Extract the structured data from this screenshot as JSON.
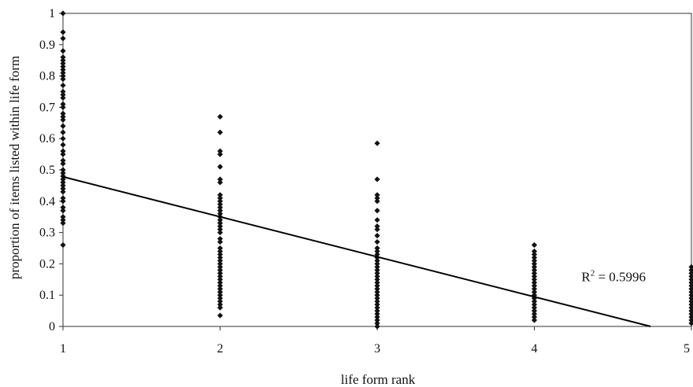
{
  "chart_data": {
    "type": "scatter",
    "title": "",
    "xlabel": "life form rank",
    "ylabel": "proportion of items listed within life form",
    "xlim": [
      1,
      5
    ],
    "ylim": [
      0,
      1
    ],
    "x_ticks": [
      "1",
      "2",
      "3",
      "4",
      "5"
    ],
    "y_ticks": [
      "0",
      "0.1",
      "0.2",
      "0.3",
      "0.4",
      "0.5",
      "0.6",
      "0.7",
      "0.8",
      "0.9",
      "1"
    ],
    "grid": false,
    "legend": "none",
    "marker_color": "#111111",
    "series": [
      {
        "points": [
          [
            1,
            1.0
          ],
          [
            1,
            0.94
          ],
          [
            1,
            0.92
          ],
          [
            1,
            0.88
          ],
          [
            1,
            0.86
          ],
          [
            1,
            0.85
          ],
          [
            1,
            0.84
          ],
          [
            1,
            0.83
          ],
          [
            1,
            0.82
          ],
          [
            1,
            0.81
          ],
          [
            1,
            0.8
          ],
          [
            1,
            0.79
          ],
          [
            1,
            0.77
          ],
          [
            1,
            0.75
          ],
          [
            1,
            0.74
          ],
          [
            1,
            0.73
          ],
          [
            1,
            0.71
          ],
          [
            1,
            0.7
          ],
          [
            1,
            0.68
          ],
          [
            1,
            0.67
          ],
          [
            1,
            0.66
          ],
          [
            1,
            0.64
          ],
          [
            1,
            0.62
          ],
          [
            1,
            0.6
          ],
          [
            1,
            0.58
          ],
          [
            1,
            0.56
          ],
          [
            1,
            0.55
          ],
          [
            1,
            0.53
          ],
          [
            1,
            0.52
          ],
          [
            1,
            0.5
          ],
          [
            1,
            0.49
          ],
          [
            1,
            0.48
          ],
          [
            1,
            0.47
          ],
          [
            1,
            0.46
          ],
          [
            1,
            0.45
          ],
          [
            1,
            0.44
          ],
          [
            1,
            0.43
          ],
          [
            1,
            0.41
          ],
          [
            1,
            0.4
          ],
          [
            1,
            0.38
          ],
          [
            1,
            0.37
          ],
          [
            1,
            0.35
          ],
          [
            1,
            0.34
          ],
          [
            1,
            0.33
          ],
          [
            1,
            0.26
          ],
          [
            2,
            0.67
          ],
          [
            2,
            0.62
          ],
          [
            2,
            0.56
          ],
          [
            2,
            0.55
          ],
          [
            2,
            0.51
          ],
          [
            2,
            0.47
          ],
          [
            2,
            0.46
          ],
          [
            2,
            0.42
          ],
          [
            2,
            0.41
          ],
          [
            2,
            0.4
          ],
          [
            2,
            0.39
          ],
          [
            2,
            0.38
          ],
          [
            2,
            0.37
          ],
          [
            2,
            0.36
          ],
          [
            2,
            0.35
          ],
          [
            2,
            0.34
          ],
          [
            2,
            0.33
          ],
          [
            2,
            0.32
          ],
          [
            2,
            0.31
          ],
          [
            2,
            0.3
          ],
          [
            2,
            0.28
          ],
          [
            2,
            0.27
          ],
          [
            2,
            0.25
          ],
          [
            2,
            0.24
          ],
          [
            2,
            0.23
          ],
          [
            2,
            0.22
          ],
          [
            2,
            0.21
          ],
          [
            2,
            0.2
          ],
          [
            2,
            0.19
          ],
          [
            2,
            0.18
          ],
          [
            2,
            0.17
          ],
          [
            2,
            0.16
          ],
          [
            2,
            0.15
          ],
          [
            2,
            0.14
          ],
          [
            2,
            0.13
          ],
          [
            2,
            0.12
          ],
          [
            2,
            0.11
          ],
          [
            2,
            0.1
          ],
          [
            2,
            0.09
          ],
          [
            2,
            0.08
          ],
          [
            2,
            0.07
          ],
          [
            2,
            0.06
          ],
          [
            2,
            0.035
          ],
          [
            3,
            0.585
          ],
          [
            3,
            0.47
          ],
          [
            3,
            0.42
          ],
          [
            3,
            0.41
          ],
          [
            3,
            0.4
          ],
          [
            3,
            0.37
          ],
          [
            3,
            0.34
          ],
          [
            3,
            0.32
          ],
          [
            3,
            0.31
          ],
          [
            3,
            0.29
          ],
          [
            3,
            0.27
          ],
          [
            3,
            0.25
          ],
          [
            3,
            0.24
          ],
          [
            3,
            0.23
          ],
          [
            3,
            0.22
          ],
          [
            3,
            0.21
          ],
          [
            3,
            0.2
          ],
          [
            3,
            0.19
          ],
          [
            3,
            0.18
          ],
          [
            3,
            0.17
          ],
          [
            3,
            0.16
          ],
          [
            3,
            0.15
          ],
          [
            3,
            0.14
          ],
          [
            3,
            0.13
          ],
          [
            3,
            0.12
          ],
          [
            3,
            0.11
          ],
          [
            3,
            0.1
          ],
          [
            3,
            0.09
          ],
          [
            3,
            0.08
          ],
          [
            3,
            0.07
          ],
          [
            3,
            0.06
          ],
          [
            3,
            0.05
          ],
          [
            3,
            0.04
          ],
          [
            3,
            0.03
          ],
          [
            3,
            0.02
          ],
          [
            3,
            0.01
          ],
          [
            3,
            0.0
          ],
          [
            4,
            0.26
          ],
          [
            4,
            0.24
          ],
          [
            4,
            0.23
          ],
          [
            4,
            0.22
          ],
          [
            4,
            0.21
          ],
          [
            4,
            0.2
          ],
          [
            4,
            0.19
          ],
          [
            4,
            0.18
          ],
          [
            4,
            0.17
          ],
          [
            4,
            0.16
          ],
          [
            4,
            0.15
          ],
          [
            4,
            0.14
          ],
          [
            4,
            0.13
          ],
          [
            4,
            0.12
          ],
          [
            4,
            0.11
          ],
          [
            4,
            0.1
          ],
          [
            4,
            0.09
          ],
          [
            4,
            0.08
          ],
          [
            4,
            0.07
          ],
          [
            4,
            0.06
          ],
          [
            4,
            0.05
          ],
          [
            4,
            0.04
          ],
          [
            4,
            0.03
          ],
          [
            4,
            0.02
          ],
          [
            5,
            0.19
          ],
          [
            5,
            0.18
          ],
          [
            5,
            0.17
          ],
          [
            5,
            0.16
          ],
          [
            5,
            0.15
          ],
          [
            5,
            0.14
          ],
          [
            5,
            0.13
          ],
          [
            5,
            0.12
          ],
          [
            5,
            0.11
          ],
          [
            5,
            0.1
          ],
          [
            5,
            0.09
          ],
          [
            5,
            0.08
          ],
          [
            5,
            0.07
          ],
          [
            5,
            0.06
          ],
          [
            5,
            0.05
          ],
          [
            5,
            0.04
          ],
          [
            5,
            0.03
          ],
          [
            5,
            0.02
          ],
          [
            5,
            0.01
          ]
        ]
      }
    ],
    "trendline": {
      "type": "linear",
      "x": [
        1,
        4.74
      ],
      "y": [
        0.478,
        0.0
      ]
    },
    "annotation": {
      "r2_prefix": "R",
      "r2_superscript": "2",
      "r2_value": " = 0.5996",
      "anchor_x": 4.3,
      "anchor_y": 0.145
    }
  }
}
